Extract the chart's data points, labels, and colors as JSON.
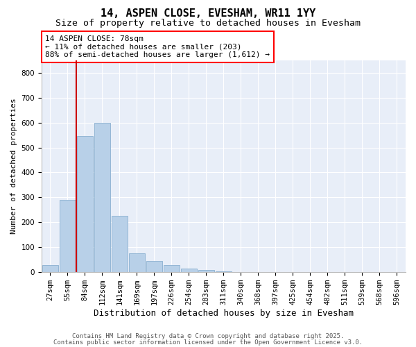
{
  "title": "14, ASPEN CLOSE, EVESHAM, WR11 1YY",
  "subtitle": "Size of property relative to detached houses in Evesham",
  "xlabel": "Distribution of detached houses by size in Evesham",
  "ylabel": "Number of detached properties",
  "categories": [
    "27sqm",
    "55sqm",
    "84sqm",
    "112sqm",
    "141sqm",
    "169sqm",
    "197sqm",
    "226sqm",
    "254sqm",
    "283sqm",
    "311sqm",
    "340sqm",
    "368sqm",
    "397sqm",
    "425sqm",
    "454sqm",
    "482sqm",
    "511sqm",
    "539sqm",
    "568sqm",
    "596sqm"
  ],
  "values": [
    28,
    290,
    545,
    600,
    225,
    75,
    45,
    28,
    12,
    8,
    3,
    0,
    0,
    0,
    0,
    0,
    0,
    0,
    0,
    0,
    0
  ],
  "bar_color": "#b8d0e8",
  "bar_edge_color": "#8ab0d0",
  "vline_color": "#cc0000",
  "vline_x_index": 2,
  "ylim": [
    0,
    850
  ],
  "yticks": [
    0,
    100,
    200,
    300,
    400,
    500,
    600,
    700,
    800
  ],
  "annotation_line1": "14 ASPEN CLOSE: 78sqm",
  "annotation_line2": "← 11% of detached houses are smaller (203)",
  "annotation_line3": "88% of semi-detached houses are larger (1,612) →",
  "bg_color": "#ffffff",
  "plot_bg_color": "#e8eef8",
  "grid_color": "#ffffff",
  "footer_line1": "Contains HM Land Registry data © Crown copyright and database right 2025.",
  "footer_line2": "Contains public sector information licensed under the Open Government Licence v3.0.",
  "title_fontsize": 11,
  "subtitle_fontsize": 9.5,
  "xlabel_fontsize": 9,
  "ylabel_fontsize": 8,
  "tick_fontsize": 7.5,
  "annot_fontsize": 8,
  "footer_fontsize": 6.5
}
